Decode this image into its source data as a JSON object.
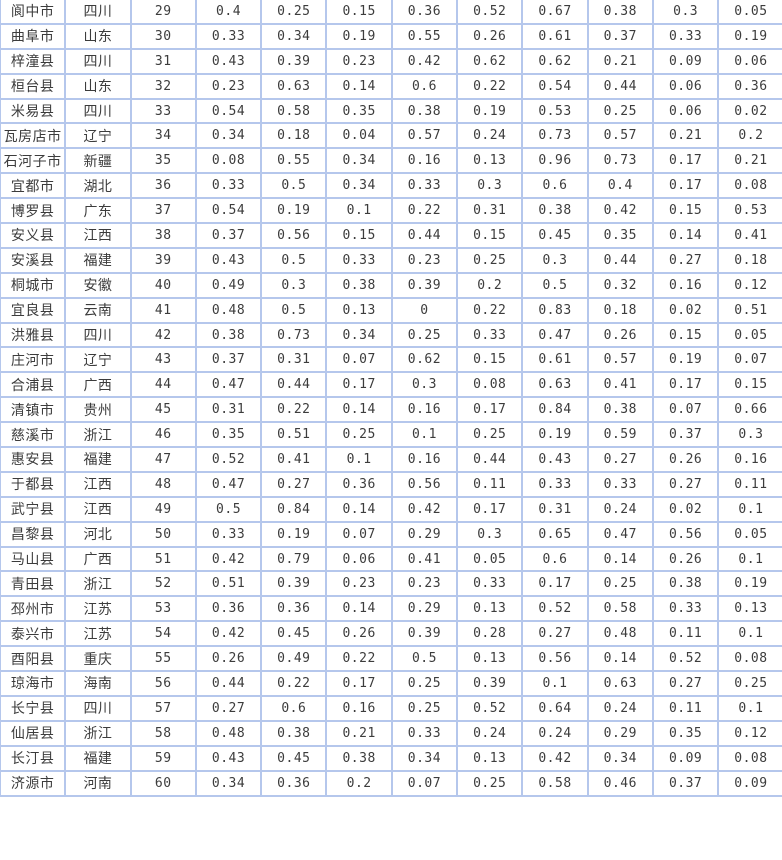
{
  "colors": {
    "border": "#b5c7ec",
    "text": "#3c3c3c",
    "background": "#ffffff"
  },
  "table": {
    "description": "ranking-table-rows-29-to-60",
    "rows": [
      {
        "name": "阆中市",
        "province": "四川",
        "rank": "29",
        "values": [
          "0.4",
          "0.25",
          "0.15",
          "0.36",
          "0.52",
          "0.67",
          "0.38",
          "0.3",
          "0.05"
        ]
      },
      {
        "name": "曲阜市",
        "province": "山东",
        "rank": "30",
        "values": [
          "0.33",
          "0.34",
          "0.19",
          "0.55",
          "0.26",
          "0.61",
          "0.37",
          "0.33",
          "0.19"
        ]
      },
      {
        "name": "梓潼县",
        "province": "四川",
        "rank": "31",
        "values": [
          "0.43",
          "0.39",
          "0.23",
          "0.42",
          "0.62",
          "0.62",
          "0.21",
          "0.09",
          "0.06"
        ]
      },
      {
        "name": "桓台县",
        "province": "山东",
        "rank": "32",
        "values": [
          "0.23",
          "0.63",
          "0.14",
          "0.6",
          "0.22",
          "0.54",
          "0.44",
          "0.06",
          "0.36"
        ]
      },
      {
        "name": "米易县",
        "province": "四川",
        "rank": "33",
        "values": [
          "0.54",
          "0.58",
          "0.35",
          "0.38",
          "0.19",
          "0.53",
          "0.25",
          "0.06",
          "0.02"
        ]
      },
      {
        "name": "瓦房店市",
        "province": "辽宁",
        "rank": "34",
        "values": [
          "0.34",
          "0.18",
          "0.04",
          "0.57",
          "0.24",
          "0.73",
          "0.57",
          "0.21",
          "0.2"
        ]
      },
      {
        "name": "石河子市",
        "province": "新疆",
        "rank": "35",
        "values": [
          "0.08",
          "0.55",
          "0.34",
          "0.16",
          "0.13",
          "0.96",
          "0.73",
          "0.17",
          "0.21"
        ]
      },
      {
        "name": "宜都市",
        "province": "湖北",
        "rank": "36",
        "values": [
          "0.33",
          "0.5",
          "0.34",
          "0.33",
          "0.3",
          "0.6",
          "0.4",
          "0.17",
          "0.08"
        ]
      },
      {
        "name": "博罗县",
        "province": "广东",
        "rank": "37",
        "values": [
          "0.54",
          "0.19",
          "0.1",
          "0.22",
          "0.31",
          "0.38",
          "0.42",
          "0.15",
          "0.53"
        ]
      },
      {
        "name": "安义县",
        "province": "江西",
        "rank": "38",
        "values": [
          "0.37",
          "0.56",
          "0.15",
          "0.44",
          "0.15",
          "0.45",
          "0.35",
          "0.14",
          "0.41"
        ]
      },
      {
        "name": "安溪县",
        "province": "福建",
        "rank": "39",
        "values": [
          "0.43",
          "0.5",
          "0.33",
          "0.23",
          "0.25",
          "0.3",
          "0.44",
          "0.27",
          "0.18"
        ]
      },
      {
        "name": "桐城市",
        "province": "安徽",
        "rank": "40",
        "values": [
          "0.49",
          "0.3",
          "0.38",
          "0.39",
          "0.2",
          "0.5",
          "0.32",
          "0.16",
          "0.12"
        ]
      },
      {
        "name": "宜良县",
        "province": "云南",
        "rank": "41",
        "values": [
          "0.48",
          "0.5",
          "0.13",
          "0",
          "0.22",
          "0.83",
          "0.18",
          "0.02",
          "0.51"
        ]
      },
      {
        "name": "洪雅县",
        "province": "四川",
        "rank": "42",
        "values": [
          "0.38",
          "0.73",
          "0.34",
          "0.25",
          "0.33",
          "0.47",
          "0.26",
          "0.15",
          "0.05"
        ]
      },
      {
        "name": "庄河市",
        "province": "辽宁",
        "rank": "43",
        "values": [
          "0.37",
          "0.31",
          "0.07",
          "0.62",
          "0.15",
          "0.61",
          "0.57",
          "0.19",
          "0.07"
        ]
      },
      {
        "name": "合浦县",
        "province": "广西",
        "rank": "44",
        "values": [
          "0.47",
          "0.44",
          "0.17",
          "0.3",
          "0.08",
          "0.63",
          "0.41",
          "0.17",
          "0.15"
        ]
      },
      {
        "name": "清镇市",
        "province": "贵州",
        "rank": "45",
        "values": [
          "0.31",
          "0.22",
          "0.14",
          "0.16",
          "0.17",
          "0.84",
          "0.38",
          "0.07",
          "0.66"
        ]
      },
      {
        "name": "慈溪市",
        "province": "浙江",
        "rank": "46",
        "values": [
          "0.35",
          "0.51",
          "0.25",
          "0.1",
          "0.25",
          "0.19",
          "0.59",
          "0.37",
          "0.3"
        ]
      },
      {
        "name": "惠安县",
        "province": "福建",
        "rank": "47",
        "values": [
          "0.52",
          "0.41",
          "0.1",
          "0.16",
          "0.44",
          "0.43",
          "0.27",
          "0.26",
          "0.16"
        ]
      },
      {
        "name": "于都县",
        "province": "江西",
        "rank": "48",
        "values": [
          "0.47",
          "0.27",
          "0.36",
          "0.56",
          "0.11",
          "0.33",
          "0.33",
          "0.27",
          "0.11"
        ]
      },
      {
        "name": "武宁县",
        "province": "江西",
        "rank": "49",
        "values": [
          "0.5",
          "0.84",
          "0.14",
          "0.42",
          "0.17",
          "0.31",
          "0.24",
          "0.02",
          "0.1"
        ]
      },
      {
        "name": "昌黎县",
        "province": "河北",
        "rank": "50",
        "values": [
          "0.33",
          "0.19",
          "0.07",
          "0.29",
          "0.3",
          "0.65",
          "0.47",
          "0.56",
          "0.05"
        ]
      },
      {
        "name": "马山县",
        "province": "广西",
        "rank": "51",
        "values": [
          "0.42",
          "0.79",
          "0.06",
          "0.41",
          "0.05",
          "0.6",
          "0.14",
          "0.26",
          "0.1"
        ]
      },
      {
        "name": "青田县",
        "province": "浙江",
        "rank": "52",
        "values": [
          "0.51",
          "0.39",
          "0.23",
          "0.23",
          "0.33",
          "0.17",
          "0.25",
          "0.38",
          "0.19"
        ]
      },
      {
        "name": "邳州市",
        "province": "江苏",
        "rank": "53",
        "values": [
          "0.36",
          "0.36",
          "0.14",
          "0.29",
          "0.13",
          "0.52",
          "0.58",
          "0.33",
          "0.13"
        ]
      },
      {
        "name": "泰兴市",
        "province": "江苏",
        "rank": "54",
        "values": [
          "0.42",
          "0.45",
          "0.26",
          "0.39",
          "0.28",
          "0.27",
          "0.48",
          "0.11",
          "0.1"
        ]
      },
      {
        "name": "酉阳县",
        "province": "重庆",
        "rank": "55",
        "values": [
          "0.26",
          "0.49",
          "0.22",
          "0.5",
          "0.13",
          "0.56",
          "0.14",
          "0.52",
          "0.08"
        ]
      },
      {
        "name": "琼海市",
        "province": "海南",
        "rank": "56",
        "values": [
          "0.44",
          "0.22",
          "0.17",
          "0.25",
          "0.39",
          "0.1",
          "0.63",
          "0.27",
          "0.25"
        ]
      },
      {
        "name": "长宁县",
        "province": "四川",
        "rank": "57",
        "values": [
          "0.27",
          "0.6",
          "0.16",
          "0.25",
          "0.52",
          "0.64",
          "0.24",
          "0.11",
          "0.1"
        ]
      },
      {
        "name": "仙居县",
        "province": "浙江",
        "rank": "58",
        "values": [
          "0.48",
          "0.38",
          "0.21",
          "0.33",
          "0.24",
          "0.24",
          "0.29",
          "0.35",
          "0.12"
        ]
      },
      {
        "name": "长汀县",
        "province": "福建",
        "rank": "59",
        "values": [
          "0.43",
          "0.45",
          "0.38",
          "0.34",
          "0.13",
          "0.42",
          "0.34",
          "0.09",
          "0.08"
        ]
      },
      {
        "name": "济源市",
        "province": "河南",
        "rank": "60",
        "values": [
          "0.34",
          "0.36",
          "0.2",
          "0.07",
          "0.25",
          "0.58",
          "0.46",
          "0.37",
          "0.09"
        ]
      }
    ]
  }
}
